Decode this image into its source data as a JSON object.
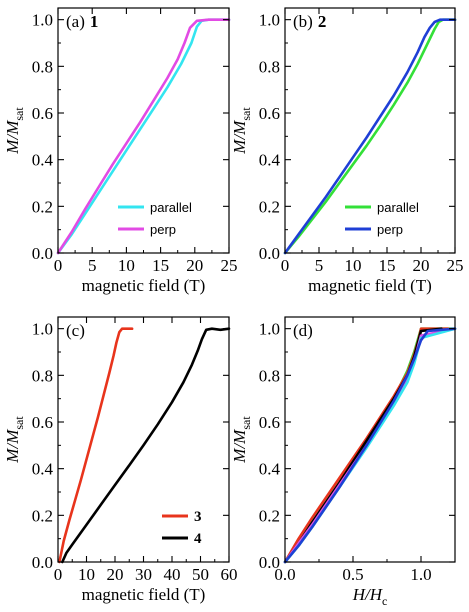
{
  "chart_data": [
    {
      "type": "line",
      "panel_label": "(a)",
      "sample": "1",
      "xlabel": "magnetic field (T)",
      "ylabel_main": "M/M",
      "ylabel_sub": "sat",
      "xlim": [
        0,
        25
      ],
      "ylim": [
        0,
        1.05
      ],
      "xticks": [
        0,
        5,
        10,
        15,
        20,
        25
      ],
      "xtick_labels": [
        "0",
        "5",
        "10",
        "15",
        "20",
        "25"
      ],
      "yticks": [
        0,
        0.2,
        0.4,
        0.6,
        0.8,
        1.0
      ],
      "ytick_labels": [
        "0.0",
        "0.2",
        "0.4",
        "0.6",
        "0.8",
        "1.0"
      ],
      "legend_position": "lower-right",
      "series": [
        {
          "name": "parallel",
          "color": "#33e5f0",
          "x": [
            0,
            1,
            2,
            4,
            6,
            8,
            10,
            12,
            14,
            16,
            18,
            19.5,
            20.3,
            21,
            22,
            25
          ],
          "y": [
            0,
            0.04,
            0.08,
            0.17,
            0.26,
            0.35,
            0.44,
            0.53,
            0.62,
            0.71,
            0.81,
            0.9,
            0.97,
            0.995,
            1.0,
            1.0
          ]
        },
        {
          "name": "perp",
          "color": "#e24be4",
          "x": [
            0,
            1,
            2,
            4,
            6,
            8,
            10,
            12,
            14,
            16,
            17.5,
            18.5,
            19.3,
            20.3,
            22,
            25
          ],
          "y": [
            0,
            0.045,
            0.09,
            0.19,
            0.285,
            0.38,
            0.47,
            0.56,
            0.655,
            0.75,
            0.83,
            0.9,
            0.965,
            0.995,
            1.0,
            1.0
          ]
        }
      ]
    },
    {
      "type": "line",
      "panel_label": "(b)",
      "sample": "2",
      "xlabel": "magnetic field (T)",
      "ylabel_main": "M/M",
      "ylabel_sub": "sat",
      "xlim": [
        0,
        25
      ],
      "ylim": [
        0,
        1.05
      ],
      "xticks": [
        0,
        5,
        10,
        15,
        20,
        25
      ],
      "xtick_labels": [
        "0",
        "5",
        "10",
        "15",
        "20",
        "25"
      ],
      "yticks": [
        0,
        0.2,
        0.4,
        0.6,
        0.8,
        1.0
      ],
      "ytick_labels": [
        "0.0",
        "0.2",
        "0.4",
        "0.6",
        "0.8",
        "1.0"
      ],
      "legend_position": "lower-right",
      "series": [
        {
          "name": "parallel",
          "color": "#33e038",
          "x": [
            0,
            1,
            2,
            4,
            6,
            8,
            10,
            12,
            14,
            16,
            18,
            19.5,
            21,
            22,
            22.6,
            23.2,
            25
          ],
          "y": [
            0,
            0.035,
            0.07,
            0.145,
            0.22,
            0.3,
            0.38,
            0.46,
            0.545,
            0.635,
            0.73,
            0.81,
            0.9,
            0.96,
            0.99,
            1.0,
            1.0
          ]
        },
        {
          "name": "perp",
          "color": "#1f3fd6",
          "x": [
            0,
            1,
            2,
            4,
            6,
            8,
            10,
            12,
            14,
            16,
            18,
            19.5,
            20.5,
            21.3,
            22,
            22.8,
            25
          ],
          "y": [
            0,
            0.04,
            0.08,
            0.16,
            0.24,
            0.325,
            0.41,
            0.495,
            0.585,
            0.675,
            0.775,
            0.86,
            0.925,
            0.965,
            0.99,
            1.0,
            1.0
          ]
        }
      ]
    },
    {
      "type": "line",
      "panel_label": "(c)",
      "sample": "",
      "xlabel": "magnetic field (T)",
      "ylabel_main": "M/M",
      "ylabel_sub": "sat",
      "xlim": [
        0,
        60
      ],
      "ylim": [
        0,
        1.05
      ],
      "xticks": [
        0,
        10,
        20,
        30,
        40,
        50,
        60
      ],
      "xtick_labels": [
        "0",
        "10",
        "20",
        "30",
        "40",
        "50",
        "60"
      ],
      "yticks": [
        0,
        0.2,
        0.4,
        0.6,
        0.8,
        1.0
      ],
      "ytick_labels": [
        "0.0",
        "0.2",
        "0.4",
        "0.6",
        "0.8",
        "1.0"
      ],
      "legend_position": "lower-right",
      "series": [
        {
          "name": "3",
          "color": "#e8341c",
          "x": [
            0.5,
            2,
            4,
            6,
            8,
            10,
            12,
            14,
            16,
            18,
            19.5,
            20.5,
            21.5,
            22.5,
            24,
            26
          ],
          "y": [
            0,
            0.09,
            0.18,
            0.265,
            0.35,
            0.44,
            0.53,
            0.62,
            0.715,
            0.81,
            0.885,
            0.94,
            0.985,
            1.0,
            1.0,
            1.0
          ]
        },
        {
          "name": "4",
          "color": "#000000",
          "x": [
            1.5,
            3,
            5,
            10,
            15,
            20,
            25,
            30,
            35,
            40,
            44,
            47,
            49,
            50.5,
            52,
            54,
            57,
            60
          ],
          "y": [
            0,
            0.04,
            0.075,
            0.16,
            0.245,
            0.33,
            0.415,
            0.5,
            0.59,
            0.685,
            0.77,
            0.845,
            0.905,
            0.955,
            0.995,
            1.0,
            0.995,
            1.0
          ]
        }
      ]
    },
    {
      "type": "line",
      "panel_label": "(d)",
      "sample": "",
      "xlabel_main": "H/H",
      "xlabel_sub": "c",
      "ylabel_main": "M/M",
      "ylabel_sub": "sat",
      "xlim": [
        0,
        1.25
      ],
      "ylim": [
        0,
        1.05
      ],
      "xticks": [
        0,
        0.5,
        1.0
      ],
      "xtick_labels": [
        "0.0",
        "0.5",
        "1.0"
      ],
      "yticks": [
        0,
        0.2,
        0.4,
        0.6,
        0.8,
        1.0
      ],
      "ytick_labels": [
        "0.0",
        "0.2",
        "0.4",
        "0.6",
        "0.8",
        "1.0"
      ],
      "series": [
        {
          "name": "",
          "color": "#33e038",
          "x": [
            0,
            0.1,
            0.2,
            0.4,
            0.6,
            0.8,
            0.9,
            0.95,
            0.98,
            1.0,
            1.25
          ],
          "y": [
            0,
            0.07,
            0.15,
            0.32,
            0.5,
            0.7,
            0.82,
            0.9,
            0.96,
            1.0,
            1.0
          ]
        },
        {
          "name": "",
          "color": "#e8341c",
          "x": [
            0,
            0.1,
            0.2,
            0.4,
            0.6,
            0.8,
            0.9,
            0.95,
            0.98,
            1.0,
            1.2
          ],
          "y": [
            0,
            0.1,
            0.19,
            0.36,
            0.53,
            0.71,
            0.81,
            0.89,
            0.95,
            1.0,
            1.0
          ]
        },
        {
          "name": "",
          "color": "#000000",
          "x": [
            0,
            0.1,
            0.2,
            0.4,
            0.6,
            0.8,
            0.9,
            0.95,
            1.0,
            1.15
          ],
          "y": [
            0,
            0.08,
            0.17,
            0.34,
            0.52,
            0.7,
            0.8,
            0.88,
            0.99,
            1.0
          ]
        },
        {
          "name": "",
          "color": "#e24be4",
          "x": [
            0,
            0.1,
            0.2,
            0.4,
            0.6,
            0.8,
            0.9,
            0.95,
            1.0,
            1.25
          ],
          "y": [
            0,
            0.08,
            0.16,
            0.33,
            0.5,
            0.68,
            0.78,
            0.86,
            0.97,
            1.0
          ]
        },
        {
          "name": "",
          "color": "#33e5f0",
          "x": [
            0,
            0.1,
            0.2,
            0.4,
            0.6,
            0.8,
            0.9,
            0.95,
            1.0,
            1.25
          ],
          "y": [
            0,
            0.07,
            0.15,
            0.32,
            0.49,
            0.67,
            0.77,
            0.85,
            0.96,
            1.0
          ]
        },
        {
          "name": "",
          "color": "#1f3fd6",
          "x": [
            0,
            0.1,
            0.2,
            0.4,
            0.6,
            0.8,
            0.9,
            0.95,
            1.0,
            1.05,
            1.25
          ],
          "y": [
            0,
            0.07,
            0.15,
            0.32,
            0.5,
            0.69,
            0.8,
            0.87,
            0.95,
            0.99,
            1.0
          ]
        }
      ]
    }
  ]
}
